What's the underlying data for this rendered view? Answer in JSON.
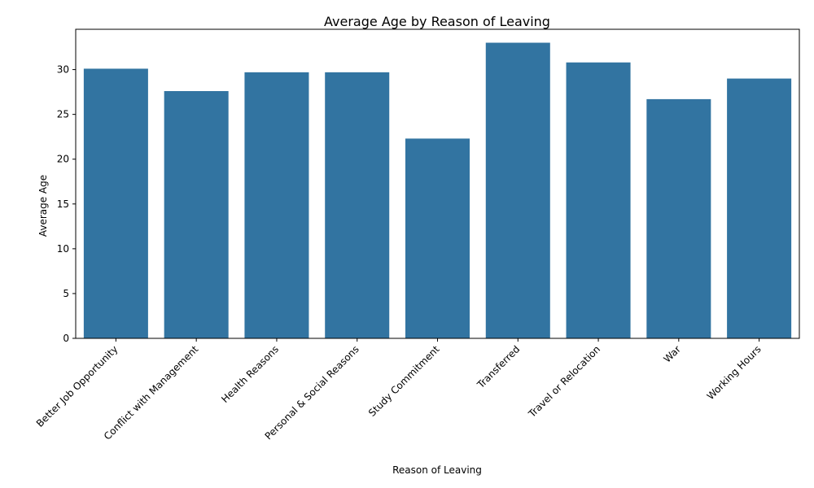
{
  "chart_data": {
    "type": "bar",
    "title": "Average Age by Reason of Leaving",
    "xlabel": "Reason of Leaving",
    "ylabel": "Average Age",
    "categories": [
      "Better Job Opportunity",
      "Conflict with Management",
      "Health Reasons",
      "Personal & Social Reasons",
      "Study Commitment",
      "Transferred",
      "Travel or Relocation",
      "War",
      "Working Hours"
    ],
    "values": [
      30.1,
      27.6,
      29.7,
      29.7,
      22.3,
      33.0,
      30.8,
      26.7,
      29.0
    ],
    "ylim": [
      0,
      34.5
    ],
    "yticks": [
      0,
      5,
      10,
      15,
      20,
      25,
      30
    ],
    "bar_color": "#3274a1",
    "grid": false,
    "legend": "none"
  }
}
